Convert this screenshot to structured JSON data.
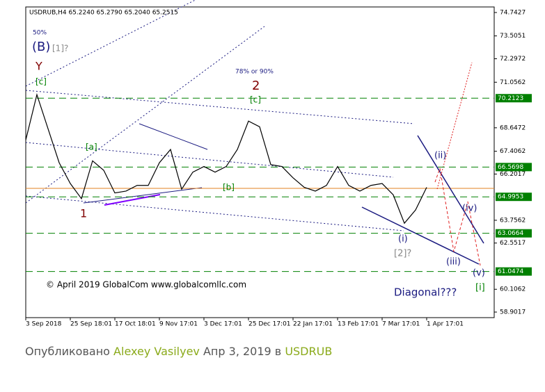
{
  "chart_data": {
    "type": "line",
    "header": "USDRUB,H4  65.2240 65.2790 65.2040 65.2515",
    "copyright": "© April 2019 GlobalCom www.globalcomllc.com",
    "categories": [
      "3 Sep 2018",
      null,
      null,
      null,
      "25 Sep 18:01",
      null,
      null,
      null,
      "17 Oct 18:01",
      null,
      null,
      null,
      "9 Nov 17:01",
      null,
      null,
      null,
      "3 Dec 17:01",
      null,
      null,
      null,
      "25 Dec 17:01",
      null,
      null,
      null,
      "22 Jan 17:01",
      null,
      null,
      null,
      "13 Feb 17:01",
      null,
      null,
      null,
      "7 Mar 17:01",
      null,
      null,
      null,
      "1 Apr 17:01",
      null,
      null,
      null,
      null,
      null,
      null
    ],
    "values": [
      68.0,
      70.4,
      68.6,
      66.8,
      65.7,
      64.9,
      66.9,
      66.4,
      65.2,
      65.3,
      65.6,
      65.6,
      66.8,
      67.5,
      65.4,
      66.3,
      66.6,
      66.3,
      66.6,
      67.5,
      69.0,
      68.7,
      66.7,
      66.6,
      66.0,
      65.5,
      65.3,
      65.6,
      66.6,
      65.6,
      65.3,
      65.6,
      65.7,
      65.1,
      63.6,
      64.3,
      65.5,
      null,
      null,
      null,
      null,
      null,
      null
    ],
    "color": "#000000",
    "ylim": [
      58.9017,
      74.7427
    ],
    "yticks": [
      58.9017,
      60.1062,
      62.5517,
      63.7562,
      66.2017,
      67.4062,
      68.6472,
      71.0562,
      72.2972,
      73.5051,
      74.7427
    ],
    "levels": [
      70.2123,
      66.5698,
      64.9953,
      63.0664,
      61.0474
    ],
    "level_color": "#008000",
    "annotations": [
      "50%",
      "(B)",
      "[1]?",
      "Y",
      "[c]",
      "78% or 90%",
      "2",
      "[c]",
      "[a]",
      "[b]",
      "1",
      "(ii)",
      "(i)",
      "[2]?",
      "(iii)",
      "(iv)",
      "(v)",
      "[i]",
      "Diagonal???"
    ]
  },
  "footer": {
    "prefix": "Опубликовано",
    "author": "Alexey Vasilyev",
    "date": "Апр 3, 2019 в",
    "symbol": "USDRUB"
  }
}
